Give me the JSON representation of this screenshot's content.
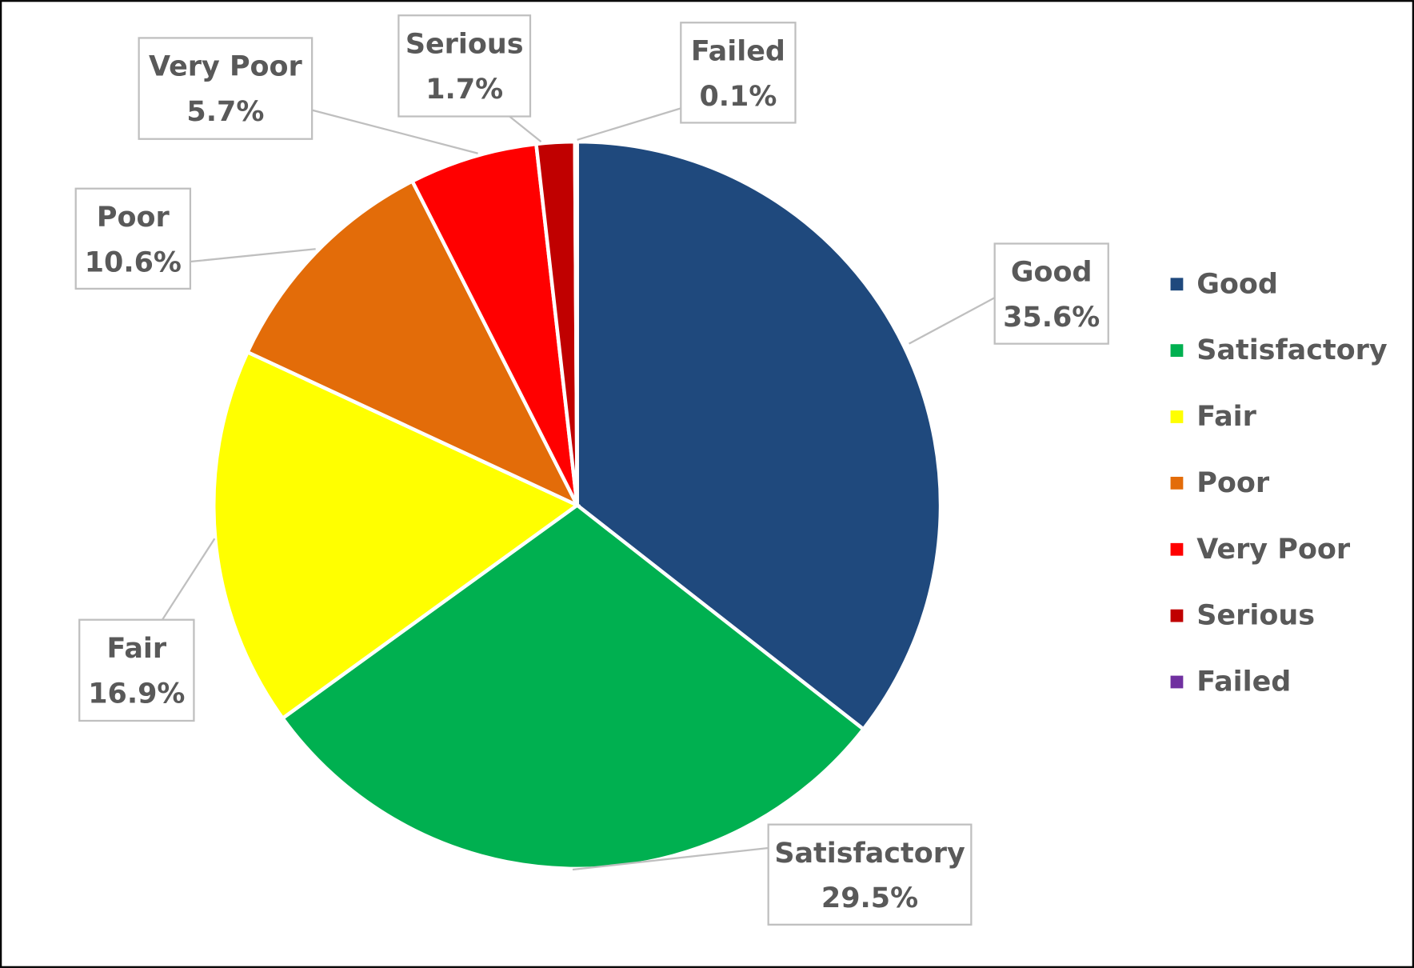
{
  "chart_data": {
    "type": "pie",
    "categories": [
      "Good",
      "Satisfactory",
      "Fair",
      "Poor",
      "Very Poor",
      "Serious",
      "Failed"
    ],
    "values": [
      35.6,
      29.5,
      16.9,
      10.6,
      5.7,
      1.7,
      0.1
    ],
    "value_labels": [
      "35.6%",
      "29.5%",
      "16.9%",
      "10.6%",
      "5.7%",
      "1.7%",
      "0.1%"
    ],
    "colors": [
      "#1f497d",
      "#00b050",
      "#ffff00",
      "#e36c09",
      "#ff0000",
      "#c00000",
      "#7030a0"
    ],
    "legend": "right"
  }
}
